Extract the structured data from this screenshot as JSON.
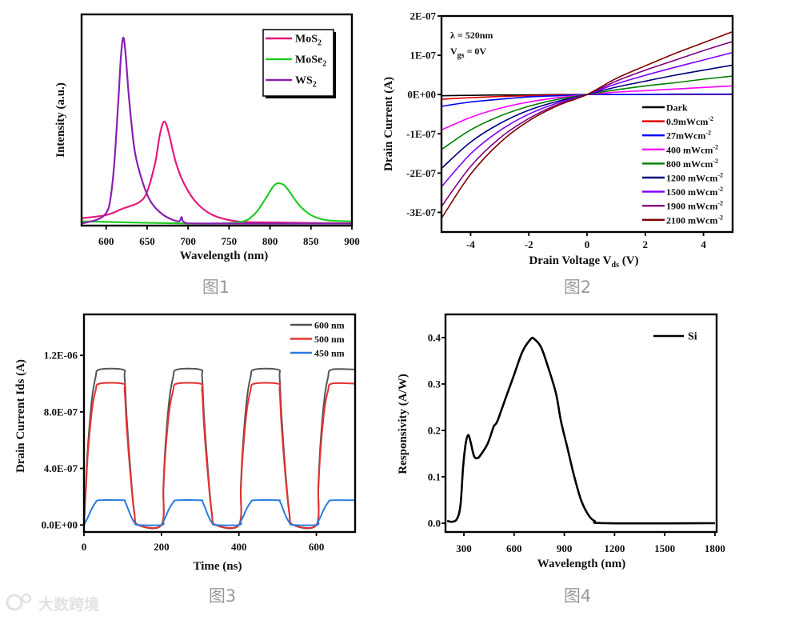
{
  "captions": [
    "图1",
    "图2",
    "图3",
    "图4"
  ],
  "watermark": "大数跨境",
  "chart_data": [
    {
      "type": "line",
      "title": "",
      "xlabel": [
        {
          "t": "Wavelength (nm)"
        }
      ],
      "ylabel": [
        {
          "t": "Intensity (a.u.)"
        }
      ],
      "xlim": [
        570,
        900
      ],
      "ylim": [
        0,
        1
      ],
      "xticks": [
        {
          "v": 600,
          "label": "600"
        },
        {
          "v": 650,
          "label": "650"
        },
        {
          "v": 700,
          "label": "700"
        },
        {
          "v": 750,
          "label": "750"
        },
        {
          "v": 800,
          "label": "800"
        },
        {
          "v": 850,
          "label": "850"
        },
        {
          "v": 900,
          "label": "900"
        }
      ],
      "yticks": [],
      "legend_placement": "top-right",
      "series": [
        {
          "name": [
            {
              "t": "MoS"
            },
            {
              "t": "2",
              "sub": true
            }
          ],
          "color": "#e6197a",
          "x": [
            570,
            600,
            620,
            640,
            650,
            660,
            665,
            670,
            675,
            685,
            695,
            710,
            730,
            760,
            800,
            900
          ],
          "y": [
            0.035,
            0.05,
            0.08,
            0.11,
            0.16,
            0.3,
            0.42,
            0.49,
            0.46,
            0.3,
            0.2,
            0.11,
            0.05,
            0.02,
            0.015,
            0.01
          ]
        },
        {
          "name": [
            {
              "t": "MoSe"
            },
            {
              "t": "2",
              "sub": true
            }
          ],
          "color": "#22cc22",
          "x": [
            570,
            700,
            760,
            780,
            795,
            805,
            812,
            820,
            835,
            850,
            870,
            900
          ],
          "y": [
            0.02,
            0.01,
            0.015,
            0.05,
            0.13,
            0.19,
            0.2,
            0.18,
            0.1,
            0.05,
            0.025,
            0.02
          ]
        },
        {
          "name": [
            {
              "t": "WS"
            },
            {
              "t": "2",
              "sub": true
            }
          ],
          "color": "#8a1fb0",
          "x": [
            570,
            590,
            600,
            605,
            610,
            615,
            618,
            621,
            624,
            628,
            635,
            645,
            655,
            670,
            688,
            692,
            696,
            720,
            900
          ],
          "y": [
            0.01,
            0.03,
            0.06,
            0.12,
            0.3,
            0.6,
            0.8,
            0.89,
            0.8,
            0.6,
            0.35,
            0.2,
            0.11,
            0.05,
            0.02,
            0.04,
            0.015,
            0.01,
            0.01
          ]
        }
      ]
    },
    {
      "type": "line",
      "title": "",
      "xlabel": [
        {
          "t": "Drain Voltage V"
        },
        {
          "t": "ds",
          "sub": true
        },
        {
          "t": " (V)"
        }
      ],
      "ylabel": [
        {
          "t": "Drain Current (A)"
        }
      ],
      "y_value_scale": "1E-07 A",
      "xlim": [
        -5,
        5
      ],
      "ylim": [
        -3.5,
        2
      ],
      "xticks": [
        {
          "v": -4,
          "label": "-4"
        },
        {
          "v": -2,
          "label": "-2"
        },
        {
          "v": 0,
          "label": "0"
        },
        {
          "v": 2,
          "label": "2"
        },
        {
          "v": 4,
          "label": "4"
        }
      ],
      "yticks": [
        {
          "v": 2,
          "label": "2E-07"
        },
        {
          "v": 1,
          "label": "1E-07"
        },
        {
          "v": 0,
          "label": "0E+00"
        },
        {
          "v": -1,
          "label": "-1E-07"
        },
        {
          "v": -2,
          "label": "-2E-07"
        },
        {
          "v": -3,
          "label": "-3E-07"
        }
      ],
      "annotations": [
        [
          {
            "t": "λ  = 520nm"
          }
        ],
        [
          {
            "t": "V"
          },
          {
            "t": "gs",
            "sub": true
          },
          {
            "t": " = 0V"
          }
        ]
      ],
      "legend_placement": "bottom-right",
      "x": [
        -5,
        -4,
        -3,
        -2,
        -1,
        0,
        1,
        2,
        3,
        4,
        5
      ],
      "series": [
        {
          "name": [
            {
              "t": "  Dark"
            }
          ],
          "color": "#000000",
          "y": [
            -0.03,
            -0.02,
            -0.01,
            -0.01,
            0,
            0,
            0,
            0,
            0,
            0,
            0
          ]
        },
        {
          "name": [
            {
              "t": "0.9mWcm"
            },
            {
              "t": "-2",
              "sup": true
            }
          ],
          "color": "#e00000",
          "y": [
            -0.12,
            -0.08,
            -0.05,
            -0.03,
            -0.01,
            0,
            0,
            0,
            0,
            0,
            0
          ]
        },
        {
          "name": [
            {
              "t": "27mWcm"
            },
            {
              "t": "-2",
              "sup": true
            }
          ],
          "color": "#0000ff",
          "y": [
            -0.3,
            -0.19,
            -0.12,
            -0.06,
            -0.03,
            0,
            0,
            0,
            0.01,
            0.01,
            0.01
          ]
        },
        {
          "name": [
            {
              "t": "400 mWcm"
            },
            {
              "t": "-2",
              "sup": true
            }
          ],
          "color": "#ff00ff",
          "y": [
            -0.9,
            -0.58,
            -0.35,
            -0.19,
            -0.08,
            0,
            0.06,
            0.1,
            0.14,
            0.18,
            0.22
          ]
        },
        {
          "name": [
            {
              "t": "800 mWcm"
            },
            {
              "t": "-2",
              "sup": true
            }
          ],
          "color": "#008000",
          "y": [
            -1.4,
            -0.9,
            -0.55,
            -0.3,
            -0.12,
            0,
            0.12,
            0.22,
            0.3,
            0.39,
            0.47
          ]
        },
        {
          "name": [
            {
              "t": "1200 mWcm"
            },
            {
              "t": "-2",
              "sup": true
            }
          ],
          "color": "#000080",
          "y": [
            -1.88,
            -1.21,
            -0.74,
            -0.4,
            -0.17,
            0,
            0.19,
            0.34,
            0.49,
            0.62,
            0.75
          ]
        },
        {
          "name": [
            {
              "t": "1500 mWcm"
            },
            {
              "t": "-2",
              "sup": true
            }
          ],
          "color": "#8000ff",
          "y": [
            -2.35,
            -1.51,
            -0.92,
            -0.5,
            -0.21,
            0,
            0.27,
            0.49,
            0.69,
            0.88,
            1.07
          ]
        },
        {
          "name": [
            {
              "t": "1900 mWcm"
            },
            {
              "t": "-2",
              "sup": true
            }
          ],
          "color": "#800080",
          "y": [
            -2.85,
            -1.83,
            -1.11,
            -0.61,
            -0.25,
            0,
            0.34,
            0.62,
            0.87,
            1.12,
            1.35
          ]
        },
        {
          "name": [
            {
              "t": "2100 mWcm"
            },
            {
              "t": "-2",
              "sup": true
            }
          ],
          "color": "#800000",
          "y": [
            -3.15,
            -2.03,
            -1.23,
            -0.67,
            -0.28,
            0,
            0.41,
            0.73,
            1.04,
            1.32,
            1.6
          ]
        }
      ]
    },
    {
      "type": "line",
      "title": "",
      "xlabel": [
        {
          "t": "Time (ns)"
        }
      ],
      "ylabel": [
        {
          "t": "Drain Current Ids (A)"
        }
      ],
      "y_value_scale": "1E-07 A",
      "xlim": [
        0,
        700
      ],
      "ylim": [
        -0.5,
        14.9
      ],
      "xticks": [
        {
          "v": 0,
          "label": "0"
        },
        {
          "v": 200,
          "label": "200"
        },
        {
          "v": 400,
          "label": "400"
        },
        {
          "v": 600,
          "label": "600"
        }
      ],
      "yticks": [
        {
          "v": 0,
          "label": "0.0E+00"
        },
        {
          "v": 4,
          "label": "4.0E-07"
        },
        {
          "v": 8,
          "label": "8.0E-07"
        },
        {
          "v": 12,
          "label": "1.2E-06"
        }
      ],
      "legend_placement": "top-right",
      "x": [
        0,
        5,
        10,
        20,
        30,
        40,
        100,
        105,
        110,
        120,
        130,
        140,
        200,
        205,
        210,
        220,
        230,
        240,
        300,
        305,
        310,
        320,
        330,
        340,
        400,
        405,
        410,
        420,
        430,
        440,
        500,
        505,
        510,
        520,
        530,
        540,
        600,
        605,
        610,
        620,
        630,
        640,
        700
      ],
      "series": [
        {
          "name": [
            {
              "t": "600 nm"
            }
          ],
          "color": "#555555",
          "y": [
            0,
            2.75,
            5.5,
            8.8,
            10.45,
            11,
            11,
            10.45,
            7.7,
            3.85,
            0.88,
            0,
            0,
            2.75,
            5.5,
            8.8,
            10.45,
            11,
            11,
            10.45,
            7.7,
            3.85,
            0.88,
            0,
            0,
            2.75,
            5.5,
            8.8,
            10.45,
            11,
            11,
            10.45,
            7.7,
            3.85,
            0.88,
            0,
            0,
            2.75,
            5.5,
            8.8,
            10.45,
            11,
            11
          ]
        },
        {
          "name": [
            {
              "t": "500 nm"
            }
          ],
          "color": "#e63232",
          "y": [
            0,
            2.5,
            5,
            8,
            9.5,
            10,
            10,
            9.5,
            7,
            3.5,
            0.8,
            0,
            0,
            2.5,
            5,
            8,
            9.5,
            10,
            10,
            9.5,
            7,
            3.5,
            0.8,
            0,
            0,
            2.5,
            5,
            8,
            9.5,
            10,
            10,
            9.5,
            7,
            3.5,
            0.8,
            0,
            0,
            2.5,
            5,
            8,
            9.5,
            10,
            10
          ]
        },
        {
          "name": [
            {
              "t": "450 nm"
            }
          ],
          "color": "#2b7de0",
          "y": [
            0,
            0.26,
            0.53,
            1.14,
            1.58,
            1.75,
            1.75,
            1.7,
            1.4,
            0.7,
            0.18,
            0,
            0,
            0.26,
            0.53,
            1.14,
            1.58,
            1.75,
            1.75,
            1.7,
            1.4,
            0.7,
            0.18,
            0,
            0,
            0.26,
            0.53,
            1.14,
            1.58,
            1.75,
            1.75,
            1.7,
            1.4,
            0.7,
            0.18,
            0,
            0,
            0.26,
            0.53,
            1.14,
            1.58,
            1.75,
            1.75
          ]
        }
      ]
    },
    {
      "type": "line",
      "title": "",
      "xlabel": [
        {
          "t": "Wavelength (nm)"
        }
      ],
      "ylabel": [
        {
          "t": "Responsivity (A/W)"
        }
      ],
      "xlim": [
        190,
        1810
      ],
      "ylim": [
        -0.019,
        0.45
      ],
      "xticks": [
        {
          "v": 300,
          "label": "300"
        },
        {
          "v": 600,
          "label": "600"
        },
        {
          "v": 900,
          "label": "900"
        },
        {
          "v": 1200,
          "label": "1200"
        },
        {
          "v": 1500,
          "label": "1500"
        },
        {
          "v": 1800,
          "label": "1800"
        }
      ],
      "yticks": [
        {
          "v": 0,
          "label": "0.0"
        },
        {
          "v": 0.1,
          "label": "0.1"
        },
        {
          "v": 0.2,
          "label": "0.2"
        },
        {
          "v": 0.3,
          "label": "0.3"
        },
        {
          "v": 0.4,
          "label": "0.4"
        }
      ],
      "legend_placement": "top-right",
      "series": [
        {
          "name": [
            {
              "t": "Si"
            }
          ],
          "color": "#000000",
          "x": [
            200,
            230,
            260,
            280,
            295,
            310,
            325,
            340,
            360,
            380,
            400,
            440,
            470,
            480,
            500,
            550,
            600,
            650,
            700,
            720,
            760,
            800,
            850,
            880,
            920,
            960,
            1000,
            1040,
            1080,
            1150,
            1800
          ],
          "y": [
            0.005,
            0.003,
            0.01,
            0.04,
            0.12,
            0.17,
            0.19,
            0.175,
            0.145,
            0.14,
            0.147,
            0.17,
            0.2,
            0.21,
            0.22,
            0.27,
            0.32,
            0.37,
            0.397,
            0.397,
            0.38,
            0.34,
            0.28,
            0.22,
            0.16,
            0.1,
            0.05,
            0.02,
            0.005,
            0,
            0
          ]
        }
      ]
    }
  ]
}
